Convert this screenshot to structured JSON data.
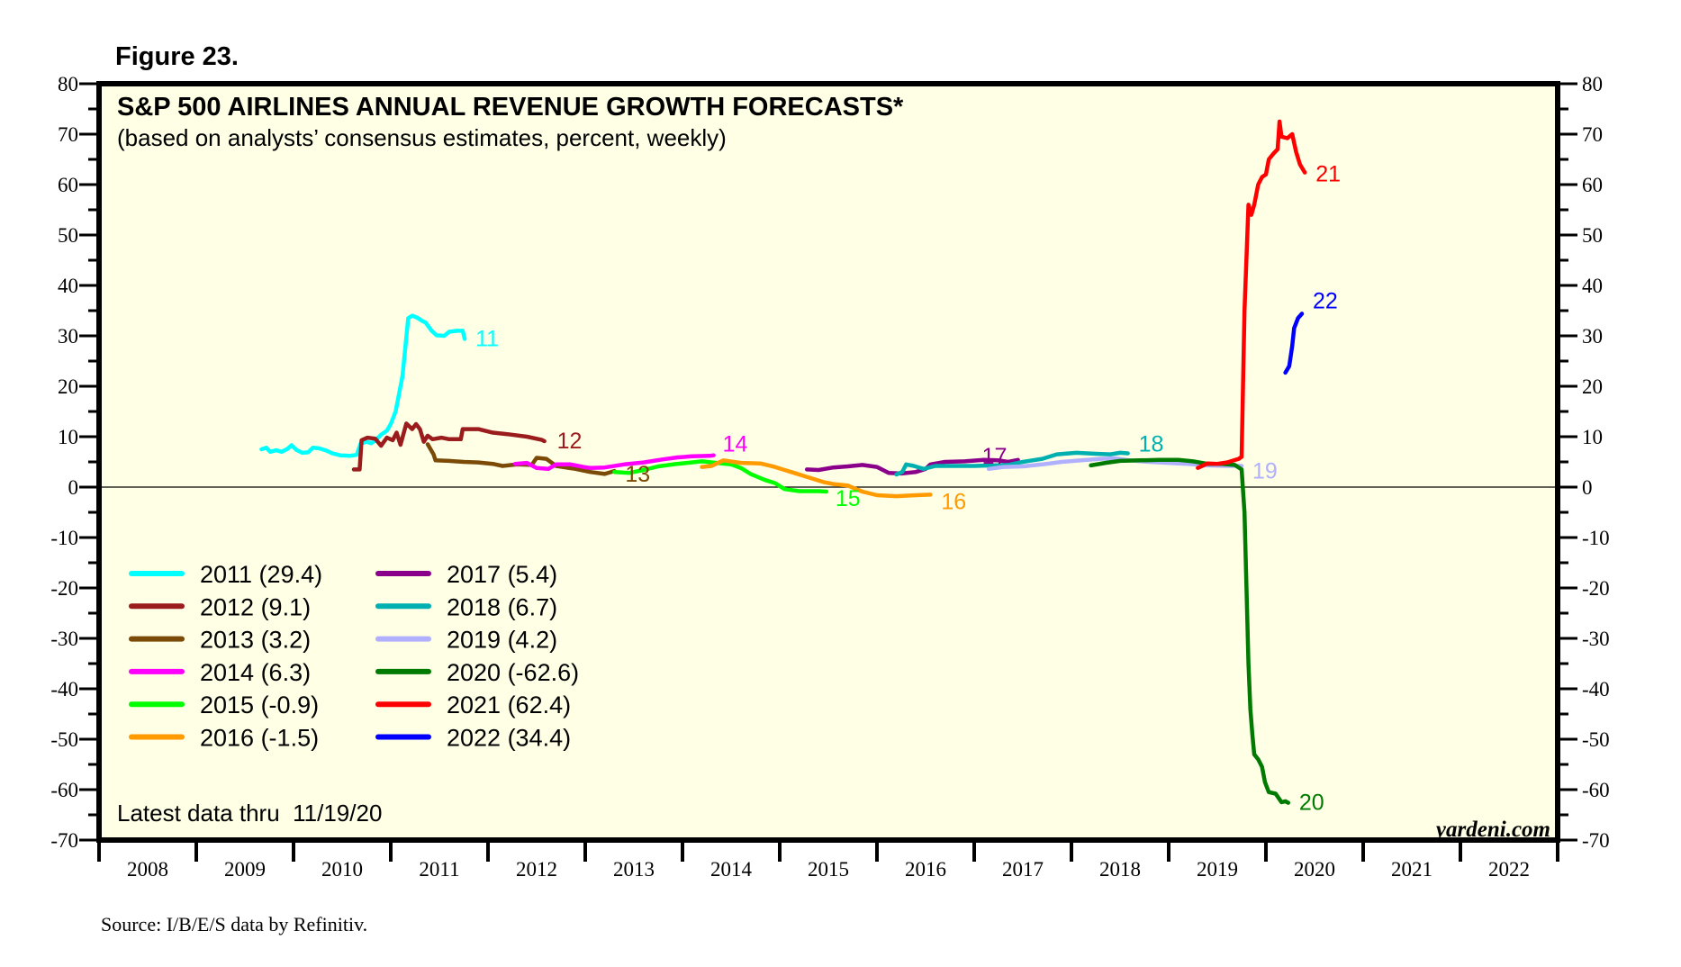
{
  "figure_label": "Figure 23.",
  "source": "Source: I/B/E/S data by Refinitiv.",
  "note": "Latest data thru  11/19/20",
  "brand": "yardeni.com",
  "chart_data": {
    "type": "line",
    "title": "S&P 500 AIRLINES ANNUAL REVENUE GROWTH FORECASTS*",
    "subtitle": "(based on analysts’ consensus estimates, percent, weekly)",
    "xlabel": "",
    "ylabel": "",
    "xlim": [
      2008,
      2023
    ],
    "ylim": [
      -70,
      80
    ],
    "x_tick_labels": [
      "2008",
      "2009",
      "2010",
      "2011",
      "2012",
      "2013",
      "2014",
      "2015",
      "2016",
      "2017",
      "2018",
      "2019",
      "2020",
      "2021",
      "2022"
    ],
    "y_ticks": [
      80,
      70,
      60,
      50,
      40,
      30,
      20,
      10,
      0,
      -10,
      -20,
      -30,
      -40,
      -50,
      -60,
      -70
    ],
    "zero_line": true,
    "grid": false,
    "legend_position": "bottom-left",
    "series": [
      {
        "name": "2011",
        "label": "11",
        "legend": "2011 (29.4)",
        "color": "#00ffff",
        "latest": 29.4,
        "points": [
          [
            2009.67,
            7.5
          ],
          [
            2009.72,
            7.8
          ],
          [
            2009.76,
            7.0
          ],
          [
            2009.82,
            7.3
          ],
          [
            2009.88,
            7.0
          ],
          [
            2009.94,
            7.6
          ],
          [
            2009.98,
            8.3
          ],
          [
            2010.03,
            7.4
          ],
          [
            2010.09,
            6.8
          ],
          [
            2010.15,
            6.9
          ],
          [
            2010.2,
            7.8
          ],
          [
            2010.26,
            7.7
          ],
          [
            2010.33,
            7.3
          ],
          [
            2010.4,
            6.7
          ],
          [
            2010.48,
            6.3
          ],
          [
            2010.58,
            6.2
          ],
          [
            2010.65,
            6.4
          ],
          [
            2010.69,
            8.6
          ],
          [
            2010.75,
            9.0
          ],
          [
            2010.8,
            8.7
          ],
          [
            2010.85,
            9.4
          ],
          [
            2010.9,
            10.4
          ],
          [
            2010.96,
            11.2
          ],
          [
            2011.0,
            12.5
          ],
          [
            2011.05,
            15.0
          ],
          [
            2011.12,
            22.0
          ],
          [
            2011.18,
            33.5
          ],
          [
            2011.22,
            34.0
          ],
          [
            2011.27,
            33.6
          ],
          [
            2011.32,
            33.0
          ],
          [
            2011.36,
            32.6
          ],
          [
            2011.42,
            31.0
          ],
          [
            2011.47,
            30.1
          ],
          [
            2011.55,
            30.0
          ],
          [
            2011.6,
            30.8
          ],
          [
            2011.68,
            31.0
          ],
          [
            2011.74,
            31.0
          ],
          [
            2011.76,
            29.4
          ]
        ]
      },
      {
        "name": "2012",
        "label": "12",
        "legend": "2012 (9.1)",
        "color": "#9b1c1c",
        "latest": 9.1,
        "points": [
          [
            2010.62,
            3.5
          ],
          [
            2010.68,
            3.5
          ],
          [
            2010.7,
            9.3
          ],
          [
            2010.76,
            9.8
          ],
          [
            2010.84,
            9.6
          ],
          [
            2010.9,
            8.2
          ],
          [
            2010.96,
            9.8
          ],
          [
            2011.02,
            9.3
          ],
          [
            2011.06,
            10.8
          ],
          [
            2011.1,
            8.4
          ],
          [
            2011.16,
            12.6
          ],
          [
            2011.22,
            11.5
          ],
          [
            2011.26,
            12.5
          ],
          [
            2011.3,
            11.5
          ],
          [
            2011.34,
            9.0
          ],
          [
            2011.38,
            10.2
          ],
          [
            2011.43,
            9.5
          ],
          [
            2011.52,
            9.8
          ],
          [
            2011.6,
            9.5
          ],
          [
            2011.72,
            9.5
          ],
          [
            2011.74,
            11.5
          ],
          [
            2011.9,
            11.5
          ],
          [
            2012.05,
            10.8
          ],
          [
            2012.2,
            10.5
          ],
          [
            2012.4,
            10.0
          ],
          [
            2012.55,
            9.4
          ],
          [
            2012.58,
            9.1
          ]
        ]
      },
      {
        "name": "2013",
        "label": "13",
        "legend": "2013 (3.2)",
        "color": "#7b4a06",
        "latest": 3.2,
        "points": [
          [
            2011.38,
            8.5
          ],
          [
            2011.44,
            6.5
          ],
          [
            2011.46,
            5.3
          ],
          [
            2011.6,
            5.2
          ],
          [
            2011.75,
            5.0
          ],
          [
            2011.9,
            4.9
          ],
          [
            2012.05,
            4.6
          ],
          [
            2012.15,
            4.2
          ],
          [
            2012.3,
            4.5
          ],
          [
            2012.45,
            4.4
          ],
          [
            2012.5,
            5.8
          ],
          [
            2012.6,
            5.6
          ],
          [
            2012.7,
            4.2
          ],
          [
            2012.9,
            3.6
          ],
          [
            2013.05,
            3.0
          ],
          [
            2013.2,
            2.6
          ],
          [
            2013.3,
            3.2
          ]
        ]
      },
      {
        "name": "2014",
        "label": "14",
        "legend": "2014 (6.3)",
        "color": "#ff00ff",
        "latest": 6.3,
        "points": [
          [
            2012.28,
            4.6
          ],
          [
            2012.4,
            4.8
          ],
          [
            2012.5,
            3.8
          ],
          [
            2012.62,
            3.6
          ],
          [
            2012.7,
            4.5
          ],
          [
            2012.85,
            4.5
          ],
          [
            2012.98,
            4.0
          ],
          [
            2013.05,
            3.8
          ],
          [
            2013.2,
            3.9
          ],
          [
            2013.4,
            4.5
          ],
          [
            2013.6,
            4.9
          ],
          [
            2013.8,
            5.5
          ],
          [
            2013.95,
            5.9
          ],
          [
            2014.1,
            6.1
          ],
          [
            2014.28,
            6.2
          ],
          [
            2014.32,
            6.3
          ]
        ]
      },
      {
        "name": "2015",
        "label": "15",
        "legend": "2015 (-0.9)",
        "color": "#00ff00",
        "latest": -0.9,
        "points": [
          [
            2013.3,
            3.0
          ],
          [
            2013.45,
            2.8
          ],
          [
            2013.6,
            3.4
          ],
          [
            2013.75,
            4.1
          ],
          [
            2013.9,
            4.5
          ],
          [
            2014.05,
            4.8
          ],
          [
            2014.2,
            5.1
          ],
          [
            2014.35,
            4.8
          ],
          [
            2014.5,
            4.5
          ],
          [
            2014.6,
            3.8
          ],
          [
            2014.7,
            2.6
          ],
          [
            2014.85,
            1.4
          ],
          [
            2014.95,
            0.8
          ],
          [
            2015.05,
            -0.4
          ],
          [
            2015.2,
            -0.8
          ],
          [
            2015.4,
            -0.8
          ],
          [
            2015.48,
            -0.9
          ]
        ]
      },
      {
        "name": "2016",
        "label": "16",
        "legend": "2016 (-1.5)",
        "color": "#ff9a00",
        "latest": -1.5,
        "points": [
          [
            2014.2,
            4.0
          ],
          [
            2014.3,
            4.2
          ],
          [
            2014.42,
            5.3
          ],
          [
            2014.6,
            4.8
          ],
          [
            2014.8,
            4.7
          ],
          [
            2014.95,
            4.0
          ],
          [
            2015.05,
            3.4
          ],
          [
            2015.15,
            2.8
          ],
          [
            2015.3,
            1.9
          ],
          [
            2015.45,
            1.0
          ],
          [
            2015.55,
            0.6
          ],
          [
            2015.7,
            0.3
          ],
          [
            2015.85,
            -0.9
          ],
          [
            2016.0,
            -1.6
          ],
          [
            2016.2,
            -1.8
          ],
          [
            2016.4,
            -1.6
          ],
          [
            2016.55,
            -1.5
          ]
        ]
      },
      {
        "name": "2017",
        "label": "17",
        "legend": "2017 (5.4)",
        "color": "#8b008b",
        "latest": 5.4,
        "points": [
          [
            2015.28,
            3.5
          ],
          [
            2015.4,
            3.4
          ],
          [
            2015.55,
            3.9
          ],
          [
            2015.7,
            4.1
          ],
          [
            2015.85,
            4.4
          ],
          [
            2016.0,
            4.0
          ],
          [
            2016.12,
            2.8
          ],
          [
            2016.25,
            2.7
          ],
          [
            2016.4,
            3.0
          ],
          [
            2016.5,
            3.6
          ],
          [
            2016.55,
            4.5
          ],
          [
            2016.7,
            5.0
          ],
          [
            2016.9,
            5.1
          ],
          [
            2017.1,
            5.4
          ],
          [
            2017.25,
            5.3
          ],
          [
            2017.35,
            5.0
          ],
          [
            2017.45,
            5.4
          ]
        ]
      },
      {
        "name": "2018",
        "label": "18",
        "legend": "2018 (6.7)",
        "color": "#00b0b0",
        "latest": 6.7,
        "points": [
          [
            2016.2,
            2.5
          ],
          [
            2016.26,
            3.0
          ],
          [
            2016.3,
            4.5
          ],
          [
            2016.38,
            4.2
          ],
          [
            2016.48,
            3.6
          ],
          [
            2016.6,
            4.2
          ],
          [
            2016.8,
            4.2
          ],
          [
            2017.0,
            4.2
          ],
          [
            2017.2,
            4.3
          ],
          [
            2017.35,
            4.4
          ],
          [
            2017.5,
            5.0
          ],
          [
            2017.7,
            5.6
          ],
          [
            2017.85,
            6.5
          ],
          [
            2018.05,
            6.8
          ],
          [
            2018.25,
            6.6
          ],
          [
            2018.4,
            6.5
          ],
          [
            2018.5,
            6.8
          ],
          [
            2018.58,
            6.7
          ]
        ]
      },
      {
        "name": "2019",
        "label": "19",
        "legend": "2019 (4.2)",
        "color": "#b0b0ff",
        "latest": 4.2,
        "points": [
          [
            2017.15,
            3.6
          ],
          [
            2017.3,
            4.0
          ],
          [
            2017.5,
            4.1
          ],
          [
            2017.7,
            4.5
          ],
          [
            2017.9,
            5.0
          ],
          [
            2018.1,
            5.3
          ],
          [
            2018.3,
            5.6
          ],
          [
            2018.45,
            5.7
          ],
          [
            2018.6,
            5.3
          ],
          [
            2018.8,
            5.0
          ],
          [
            2019.0,
            4.8
          ],
          [
            2019.2,
            4.6
          ],
          [
            2019.4,
            4.3
          ],
          [
            2019.6,
            4.2
          ],
          [
            2019.75,
            4.2
          ]
        ]
      },
      {
        "name": "2020",
        "label": "20",
        "legend": "2020 (-62.6)",
        "color": "#007a00",
        "latest": -62.6,
        "points": [
          [
            2018.2,
            4.3
          ],
          [
            2018.35,
            4.8
          ],
          [
            2018.5,
            5.2
          ],
          [
            2018.7,
            5.3
          ],
          [
            2018.9,
            5.4
          ],
          [
            2019.1,
            5.4
          ],
          [
            2019.25,
            5.1
          ],
          [
            2019.4,
            4.6
          ],
          [
            2019.55,
            4.6
          ],
          [
            2019.68,
            4.4
          ],
          [
            2019.75,
            3.5
          ],
          [
            2019.78,
            -5
          ],
          [
            2019.8,
            -20
          ],
          [
            2019.82,
            -35
          ],
          [
            2019.84,
            -44
          ],
          [
            2019.86,
            -49
          ],
          [
            2019.88,
            -53
          ],
          [
            2019.92,
            -54
          ],
          [
            2019.96,
            -55.5
          ],
          [
            2019.99,
            -58.5
          ],
          [
            2020.03,
            -60.5
          ],
          [
            2020.1,
            -60.8
          ],
          [
            2020.16,
            -62.5
          ],
          [
            2020.2,
            -62.3
          ],
          [
            2020.23,
            -62.6
          ]
        ]
      },
      {
        "name": "2021",
        "label": "21",
        "legend": "2021 (62.4)",
        "color": "#ff0000",
        "latest": 62.4,
        "points": [
          [
            2019.3,
            3.8
          ],
          [
            2019.4,
            4.7
          ],
          [
            2019.5,
            4.6
          ],
          [
            2019.6,
            4.9
          ],
          [
            2019.72,
            5.6
          ],
          [
            2019.75,
            6.0
          ],
          [
            2019.78,
            35
          ],
          [
            2019.82,
            56
          ],
          [
            2019.85,
            54
          ],
          [
            2019.88,
            56
          ],
          [
            2019.92,
            60
          ],
          [
            2019.96,
            61.5
          ],
          [
            2020.0,
            62
          ],
          [
            2020.03,
            65
          ],
          [
            2020.08,
            66.2
          ],
          [
            2020.12,
            67
          ],
          [
            2020.14,
            72.5
          ],
          [
            2020.16,
            69.5
          ],
          [
            2020.22,
            69.2
          ],
          [
            2020.27,
            70
          ],
          [
            2020.31,
            66.5
          ],
          [
            2020.35,
            64
          ],
          [
            2020.4,
            62.4
          ]
        ]
      },
      {
        "name": "2022",
        "label": "22",
        "legend": "2022 (34.4)",
        "color": "#0000ff",
        "latest": 34.4,
        "points": [
          [
            2020.2,
            22.7
          ],
          [
            2020.24,
            24
          ],
          [
            2020.27,
            28
          ],
          [
            2020.29,
            31.5
          ],
          [
            2020.33,
            33.5
          ],
          [
            2020.37,
            34.4
          ]
        ]
      }
    ]
  }
}
